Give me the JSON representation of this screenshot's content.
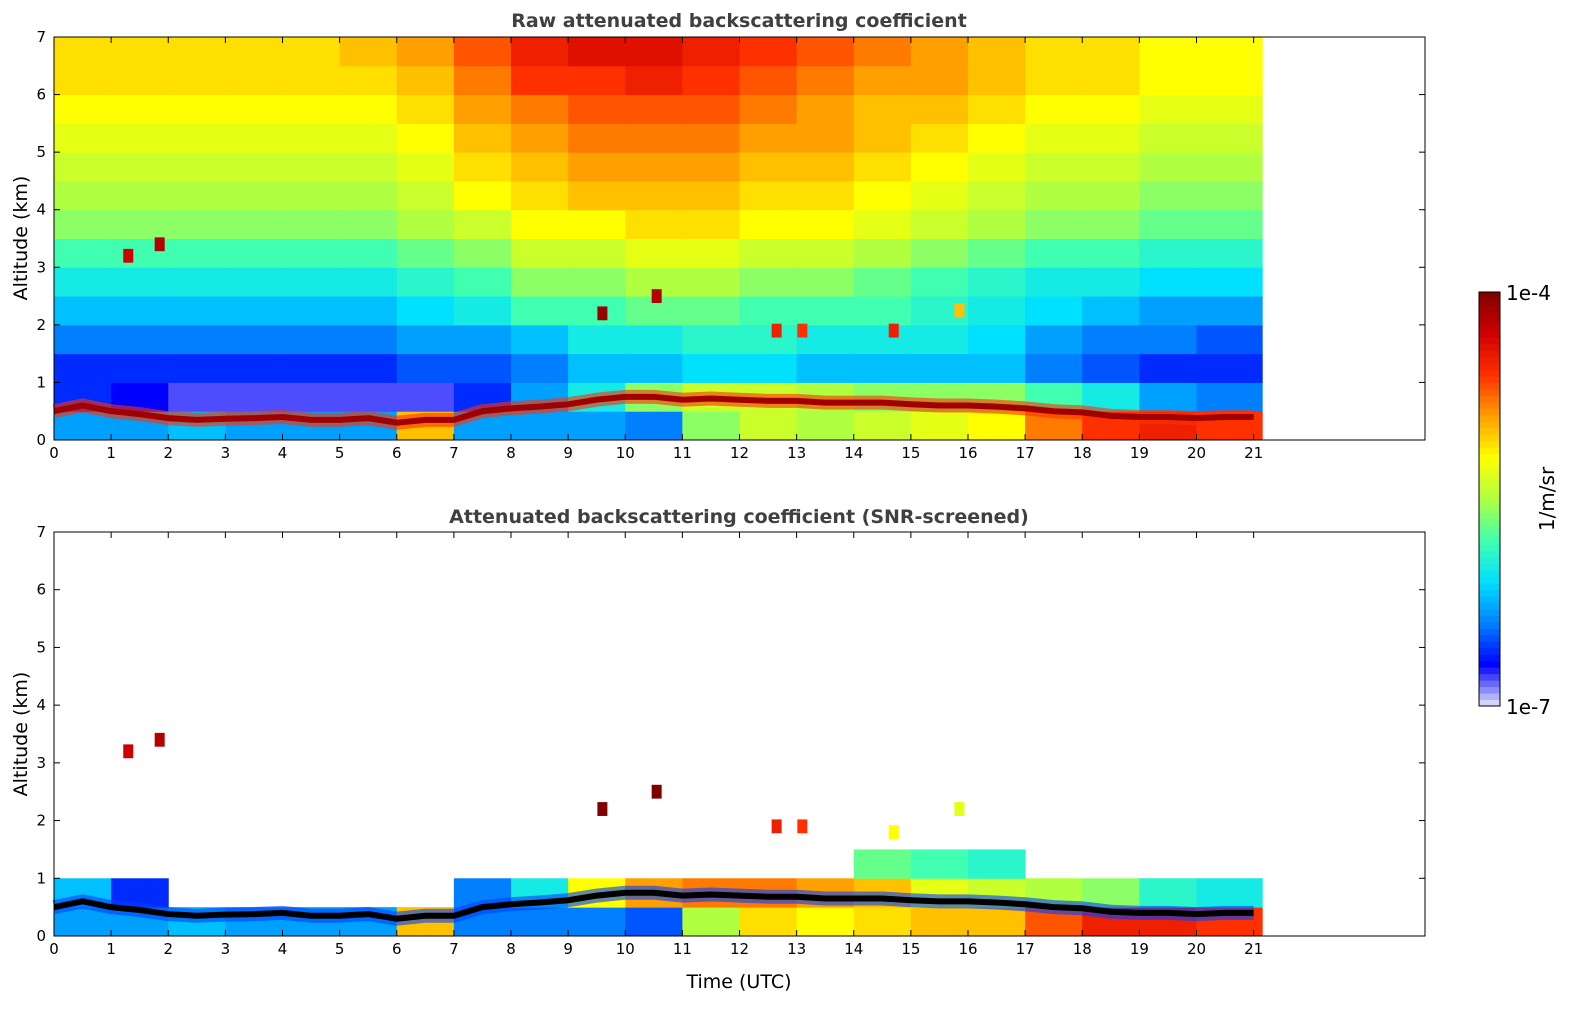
{
  "chart_data": [
    {
      "type": "heatmap",
      "title": "Raw attenuated backscattering coefficient",
      "xlabel": "",
      "ylabel": "Altitude (km)",
      "xlim": [
        0,
        24
      ],
      "ylim": [
        0,
        7
      ],
      "xticks": [
        "0",
        "1",
        "2",
        "3",
        "4",
        "5",
        "6",
        "7",
        "8",
        "9",
        "10",
        "11",
        "12",
        "13",
        "14",
        "15",
        "16",
        "17",
        "18",
        "19",
        "20",
        "21"
      ],
      "yticks": [
        "0",
        "1",
        "2",
        "3",
        "4",
        "5",
        "6",
        "7"
      ],
      "time_end": 21.15,
      "alt_bin_edges": [
        0,
        0.5,
        1,
        1.5,
        2,
        2.5,
        3,
        3.5,
        4,
        4.5,
        5,
        5.5,
        6,
        6.5,
        7
      ],
      "value_units": "log10(1/m/sr)",
      "matrix": [
        [
          -6.3,
          -6.3,
          -6.2,
          -6.3,
          -6.3,
          -6.3,
          -5.0,
          -6.3,
          -6.3,
          -6.3,
          -6.4,
          -5.6,
          -5.4,
          -5.5,
          -5.4,
          -5.3,
          -5.2,
          -4.8,
          -4.6,
          -4.5,
          -4.6
        ],
        [
          -6.6,
          -6.7,
          -6.8,
          -6.8,
          -6.8,
          -6.8,
          -6.8,
          -6.6,
          -6.3,
          -6.0,
          -5.6,
          -5.4,
          -5.4,
          -5.5,
          -5.6,
          -5.6,
          -5.6,
          -5.8,
          -6.0,
          -6.3,
          -6.4
        ],
        [
          -6.6,
          -6.6,
          -6.6,
          -6.6,
          -6.6,
          -6.6,
          -6.5,
          -6.5,
          -6.4,
          -6.2,
          -6.2,
          -6.1,
          -6.1,
          -6.2,
          -6.2,
          -6.2,
          -6.2,
          -6.4,
          -6.5,
          -6.6,
          -6.6
        ],
        [
          -6.4,
          -6.4,
          -6.4,
          -6.4,
          -6.4,
          -6.4,
          -6.3,
          -6.3,
          -6.2,
          -6.0,
          -6.0,
          -5.9,
          -5.9,
          -6.0,
          -6.0,
          -6.0,
          -6.1,
          -6.3,
          -6.4,
          -6.4,
          -6.5
        ],
        [
          -6.2,
          -6.2,
          -6.2,
          -6.2,
          -6.2,
          -6.2,
          -6.1,
          -6.0,
          -5.8,
          -5.8,
          -5.7,
          -5.7,
          -5.8,
          -5.8,
          -5.8,
          -5.9,
          -6.0,
          -6.1,
          -6.2,
          -6.3,
          -6.3
        ],
        [
          -6.0,
          -6.0,
          -6.0,
          -6.0,
          -6.0,
          -6.0,
          -5.9,
          -5.8,
          -5.6,
          -5.6,
          -5.5,
          -5.5,
          -5.6,
          -5.6,
          -5.7,
          -5.8,
          -5.9,
          -6.0,
          -6.0,
          -6.1,
          -6.1
        ],
        [
          -5.8,
          -5.8,
          -5.8,
          -5.8,
          -5.8,
          -5.8,
          -5.7,
          -5.6,
          -5.4,
          -5.4,
          -5.3,
          -5.3,
          -5.4,
          -5.4,
          -5.5,
          -5.6,
          -5.7,
          -5.8,
          -5.8,
          -5.9,
          -5.9
        ],
        [
          -5.6,
          -5.6,
          -5.6,
          -5.6,
          -5.6,
          -5.6,
          -5.5,
          -5.4,
          -5.2,
          -5.2,
          -5.1,
          -5.1,
          -5.2,
          -5.2,
          -5.3,
          -5.4,
          -5.5,
          -5.6,
          -5.6,
          -5.7,
          -5.7
        ],
        [
          -5.5,
          -5.5,
          -5.5,
          -5.5,
          -5.5,
          -5.5,
          -5.4,
          -5.2,
          -5.1,
          -5.0,
          -5.0,
          -5.0,
          -5.1,
          -5.1,
          -5.2,
          -5.3,
          -5.4,
          -5.5,
          -5.5,
          -5.6,
          -5.6
        ],
        [
          -5.4,
          -5.4,
          -5.4,
          -5.4,
          -5.4,
          -5.4,
          -5.3,
          -5.1,
          -5.0,
          -4.9,
          -4.9,
          -4.9,
          -5.0,
          -5.0,
          -5.1,
          -5.2,
          -5.3,
          -5.4,
          -5.4,
          -5.5,
          -5.5
        ],
        [
          -5.3,
          -5.3,
          -5.3,
          -5.3,
          -5.3,
          -5.3,
          -5.2,
          -5.0,
          -4.9,
          -4.8,
          -4.8,
          -4.8,
          -4.9,
          -4.9,
          -5.0,
          -5.1,
          -5.2,
          -5.3,
          -5.3,
          -5.4,
          -5.4
        ],
        [
          -5.2,
          -5.2,
          -5.2,
          -5.2,
          -5.2,
          -5.2,
          -5.1,
          -4.9,
          -4.8,
          -4.7,
          -4.7,
          -4.7,
          -4.8,
          -4.9,
          -5.0,
          -5.0,
          -5.1,
          -5.2,
          -5.2,
          -5.3,
          -5.3
        ],
        [
          -5.1,
          -5.1,
          -5.1,
          -5.1,
          -5.1,
          -5.1,
          -5.0,
          -4.8,
          -4.6,
          -4.6,
          -4.5,
          -4.6,
          -4.7,
          -4.8,
          -4.9,
          -4.9,
          -5.0,
          -5.1,
          -5.1,
          -5.2,
          -5.2
        ],
        [
          -5.1,
          -5.1,
          -5.1,
          -5.1,
          -5.1,
          -5.0,
          -4.9,
          -4.7,
          -4.5,
          -4.4,
          -4.4,
          -4.5,
          -4.6,
          -4.7,
          -4.8,
          -4.9,
          -5.0,
          -5.1,
          -5.1,
          -5.2,
          -5.2
        ]
      ],
      "layer_top_km": [
        0.5,
        0.6,
        0.5,
        0.45,
        0.38,
        0.35,
        0.37,
        0.38,
        0.4,
        0.35,
        0.35,
        0.38,
        0.3,
        0.35,
        0.35,
        0.5,
        0.55,
        0.58,
        0.62,
        0.7,
        0.75,
        0.75,
        0.7,
        0.72,
        0.7,
        0.68,
        0.68,
        0.65,
        0.65,
        0.65,
        0.62,
        0.6,
        0.6,
        0.58,
        0.55,
        0.5,
        0.48,
        0.42,
        0.4,
        0.4,
        0.38,
        0.4,
        0.4
      ],
      "layer_step_h": 0.5,
      "layer_color": "#a00000",
      "features": [
        {
          "time": 1.3,
          "alt": 3.2,
          "value": -4.3
        },
        {
          "time": 1.85,
          "alt": 3.4,
          "value": -4.2
        },
        {
          "time": 9.6,
          "alt": 2.2,
          "value": -4.1
        },
        {
          "time": 10.55,
          "alt": 2.5,
          "value": -4.2
        },
        {
          "time": 12.65,
          "alt": 1.9,
          "value": -4.5
        },
        {
          "time": 13.1,
          "alt": 1.9,
          "value": -4.6
        },
        {
          "time": 14.7,
          "alt": 1.9,
          "value": -4.5
        },
        {
          "time": 15.85,
          "alt": 2.25,
          "value": -5.0
        }
      ]
    },
    {
      "type": "heatmap",
      "title": "Attenuated backscattering coefficient (SNR-screened)",
      "xlabel": "Time (UTC)",
      "ylabel": "Altitude (km)",
      "xlim": [
        0,
        24
      ],
      "ylim": [
        0,
        7
      ],
      "xticks": [
        "0",
        "1",
        "2",
        "3",
        "4",
        "5",
        "6",
        "7",
        "8",
        "9",
        "10",
        "11",
        "12",
        "13",
        "14",
        "15",
        "16",
        "17",
        "18",
        "19",
        "20",
        "21"
      ],
      "yticks": [
        "0",
        "1",
        "2",
        "3",
        "4",
        "5",
        "6",
        "7"
      ],
      "time_end": 21.15,
      "alt_bin_edges": [
        0,
        0.5,
        1,
        1.5
      ],
      "value_units": "log10(1/m/sr)",
      "matrix": [
        [
          -6.3,
          -6.3,
          -6.2,
          -6.3,
          -6.3,
          -6.3,
          -5.0,
          -6.4,
          -6.4,
          -6.4,
          -6.5,
          -5.5,
          -5.1,
          -5.2,
          -5.1,
          -5.0,
          -5.0,
          -4.7,
          -4.5,
          -4.5,
          -4.6
        ],
        [
          -6.2,
          -6.6,
          null,
          null,
          null,
          null,
          null,
          -6.4,
          -6.0,
          -5.2,
          -4.9,
          -4.8,
          -4.8,
          -4.9,
          -5.0,
          -5.3,
          -5.4,
          -5.5,
          -5.6,
          -5.9,
          -6.0
        ],
        [
          null,
          null,
          null,
          null,
          null,
          null,
          null,
          null,
          null,
          null,
          null,
          null,
          null,
          null,
          -5.7,
          -5.8,
          -5.9,
          null,
          null,
          null,
          null
        ]
      ],
      "layer_top_km": [
        0.5,
        0.6,
        0.5,
        0.45,
        0.38,
        0.35,
        0.37,
        0.38,
        0.4,
        0.35,
        0.35,
        0.38,
        0.3,
        0.35,
        0.35,
        0.5,
        0.55,
        0.58,
        0.62,
        0.7,
        0.75,
        0.75,
        0.7,
        0.72,
        0.7,
        0.68,
        0.68,
        0.65,
        0.65,
        0.65,
        0.62,
        0.6,
        0.6,
        0.58,
        0.55,
        0.5,
        0.48,
        0.42,
        0.4,
        0.4,
        0.38,
        0.4,
        0.4
      ],
      "layer_step_h": 0.5,
      "layer_color": "#000000",
      "features": [
        {
          "time": 1.3,
          "alt": 3.2,
          "value": -4.3
        },
        {
          "time": 1.85,
          "alt": 3.4,
          "value": -4.2
        },
        {
          "time": 9.6,
          "alt": 2.2,
          "value": -4.0
        },
        {
          "time": 10.55,
          "alt": 2.5,
          "value": -4.0
        },
        {
          "time": 12.65,
          "alt": 1.9,
          "value": -4.5
        },
        {
          "time": 13.1,
          "alt": 1.9,
          "value": -4.6
        },
        {
          "time": 14.7,
          "alt": 1.8,
          "value": -5.2
        },
        {
          "time": 15.85,
          "alt": 2.2,
          "value": -5.3
        }
      ]
    }
  ],
  "colorbar": {
    "max_label": "1e-4",
    "min_label": "1e-7",
    "unit_label": "1/m/sr",
    "range_log10": [
      -7,
      -4
    ],
    "stops": [
      "#e6e6fa",
      "#0000ff",
      "#0080ff",
      "#00e0ff",
      "#40ffb0",
      "#b0ff40",
      "#ffff00",
      "#ffa000",
      "#ff3000",
      "#d00000",
      "#800000"
    ]
  }
}
